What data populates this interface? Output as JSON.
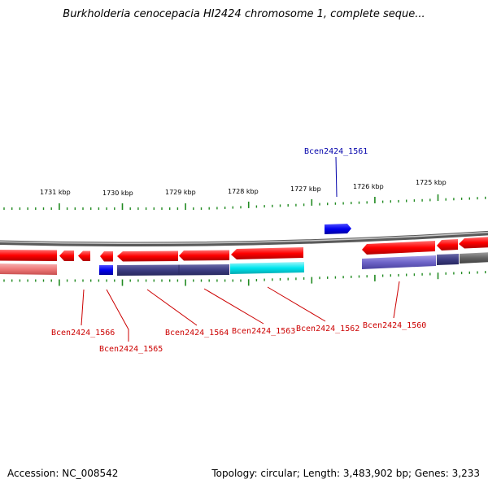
{
  "title": "Burkholderia cenocepacia HI2424 chromosome 1, complete seque...",
  "footer": {
    "accession": "Accession: NC_008542",
    "summary": "Topology: circular; Length: 3,483,902 bp; Genes: 3,233"
  },
  "colors": {
    "forward_gene": "#ff0000",
    "reverse_gene": "#f07878",
    "highlight_gene": "#0000ee",
    "dark_blue": "#3c3c82",
    "cyan": "#00e5ee",
    "lavender": "#6e64c8",
    "gray": "#666666",
    "ticks": "#228b22",
    "label_red": "#cc0000",
    "label_blue": "#0000aa"
  },
  "kbp_labels": [
    "1731 kbp",
    "1730 kbp",
    "1729 kbp",
    "1728 kbp",
    "1727 kbp",
    "1726 kbp",
    "1725 kbp"
  ],
  "genes": [
    {
      "id": "Bcen2424_1566",
      "color": "red"
    },
    {
      "id": "Bcen2424_1565",
      "color": "red"
    },
    {
      "id": "Bcen2424_1564",
      "color": "red"
    },
    {
      "id": "Bcen2424_1563",
      "color": "red"
    },
    {
      "id": "Bcen2424_1562",
      "color": "red"
    },
    {
      "id": "Bcen2424_1561",
      "color": "blue"
    },
    {
      "id": "Bcen2424_1560",
      "color": "red"
    }
  ]
}
